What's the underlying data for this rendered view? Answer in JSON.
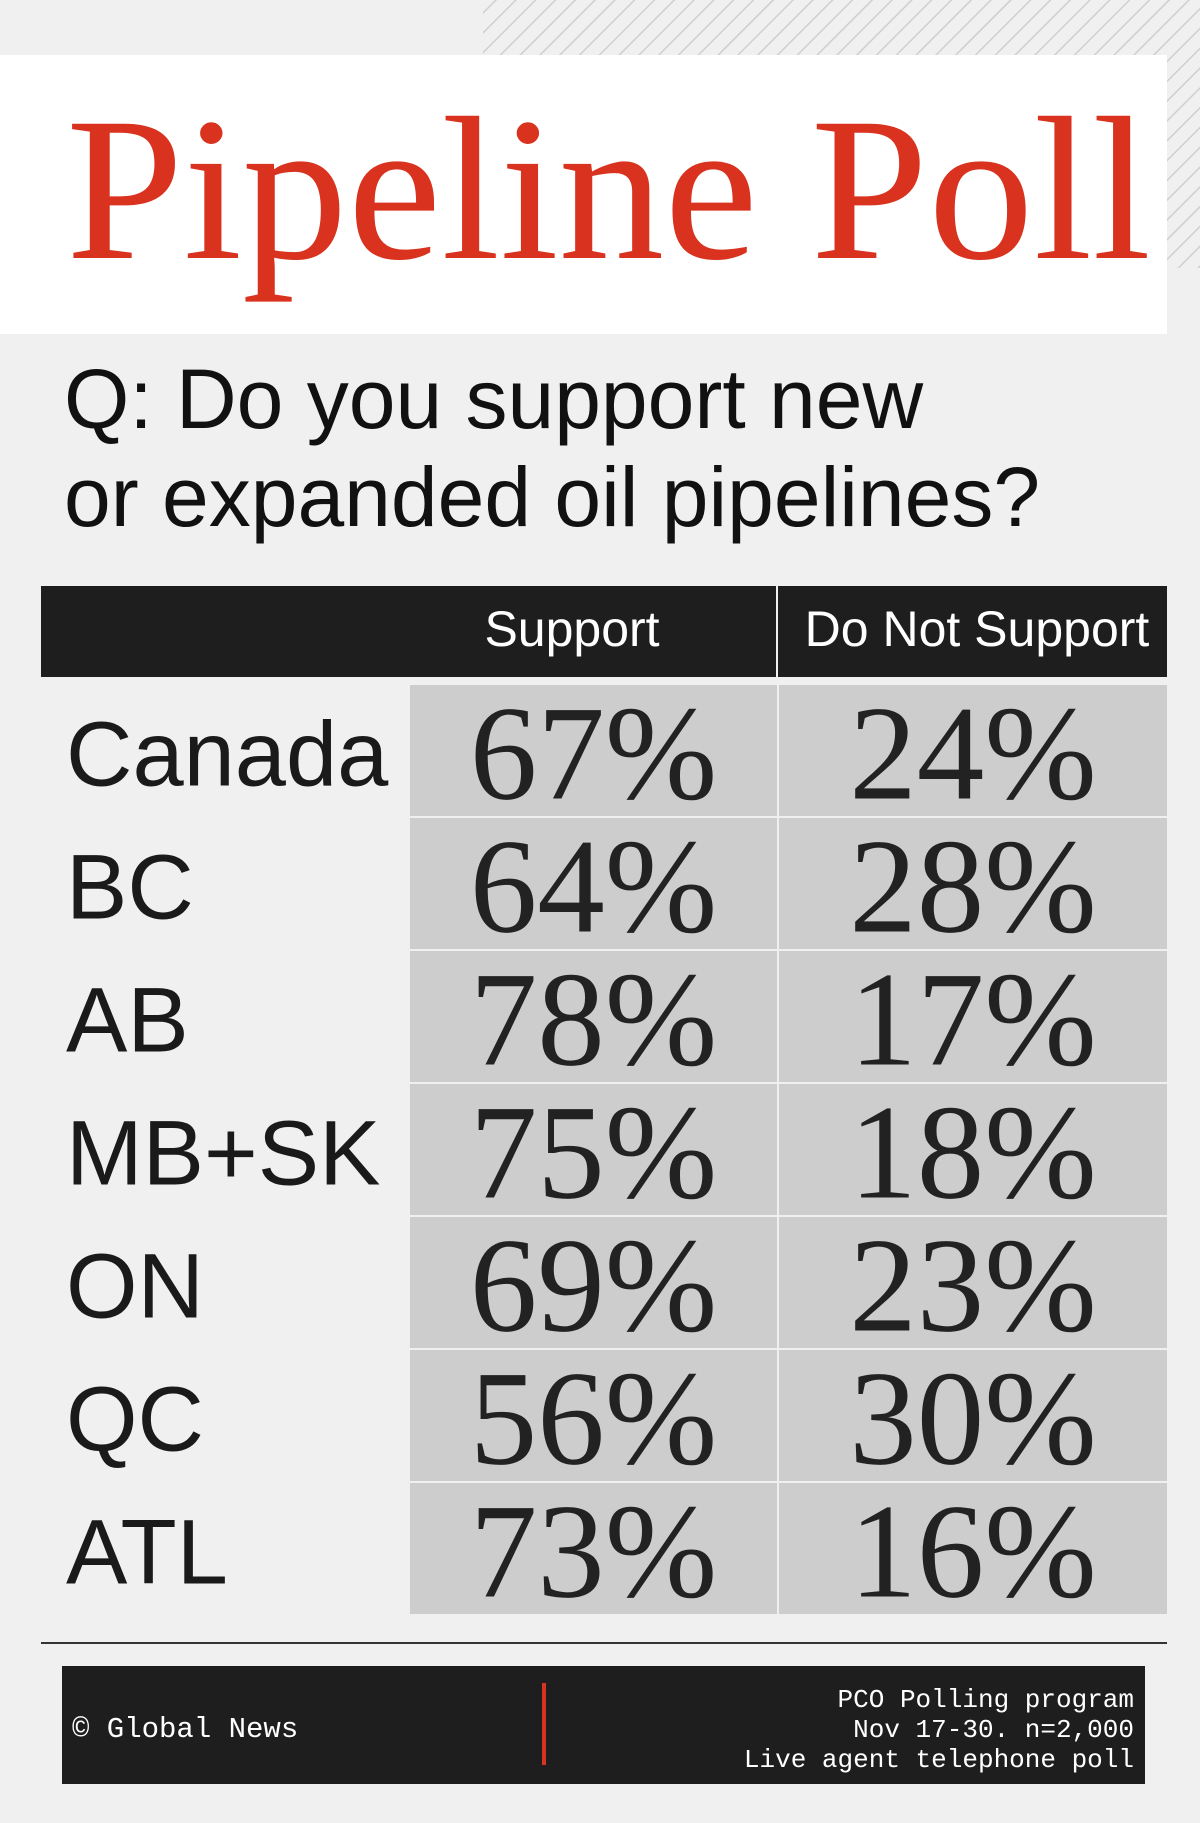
{
  "header": {
    "title": "Pipeline Poll",
    "question": [
      "Q: Do you support new",
      "or expanded oil pipelines?"
    ]
  },
  "table": {
    "columns": [
      "Support",
      "Do Not Support"
    ],
    "rows": [
      [
        "Canada",
        "67%",
        "24%"
      ],
      [
        "BC",
        "64%",
        "28%"
      ],
      [
        "AB",
        "78%",
        "17%"
      ],
      [
        "MB+SK",
        "75%",
        "18%"
      ],
      [
        "ON",
        "69%",
        "23%"
      ],
      [
        "QC",
        "56%",
        "30%"
      ],
      [
        "ATL",
        "73%",
        "16%"
      ]
    ]
  },
  "footer": {
    "credit": "© Global News",
    "source": [
      "PCO Polling program",
      "Nov 17-30. n=2,000",
      "Live agent telephone poll"
    ]
  }
}
